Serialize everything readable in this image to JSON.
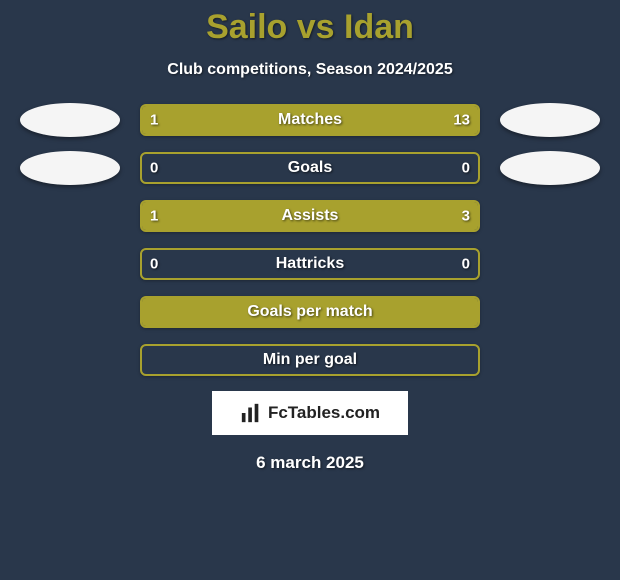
{
  "title": "Sailo vs Idan",
  "title_color": "#a8a12e",
  "subtitle": "Club competitions, Season 2024/2025",
  "background_color": "#29374b",
  "bar_border_color": "#a8a12e",
  "colors": {
    "player1": "#a8a12e",
    "player2": "#a8a12e",
    "empty_bg": "#29374b"
  },
  "stats": [
    {
      "label": "Matches",
      "left_val": "1",
      "right_val": "13",
      "left_share": 0.072,
      "right_share": 0.928,
      "show_vals": true,
      "show_avatars": true
    },
    {
      "label": "Goals",
      "left_val": "0",
      "right_val": "0",
      "left_share": 0.0,
      "right_share": 0.0,
      "show_vals": true,
      "show_avatars": true
    },
    {
      "label": "Assists",
      "left_val": "1",
      "right_val": "3",
      "left_share": 0.25,
      "right_share": 0.75,
      "show_vals": true,
      "show_avatars": false
    },
    {
      "label": "Hattricks",
      "left_val": "0",
      "right_val": "0",
      "left_share": 0.0,
      "right_share": 0.0,
      "show_vals": true,
      "show_avatars": false
    },
    {
      "label": "Goals per match",
      "left_val": "",
      "right_val": "",
      "left_share": 1.0,
      "right_share": 0.0,
      "show_vals": false,
      "show_avatars": false
    },
    {
      "label": "Min per goal",
      "left_val": "",
      "right_val": "",
      "left_share": 0.0,
      "right_share": 0.0,
      "show_vals": false,
      "show_avatars": false
    }
  ],
  "logo_text": "FcTables.com",
  "date": "6 march 2025"
}
